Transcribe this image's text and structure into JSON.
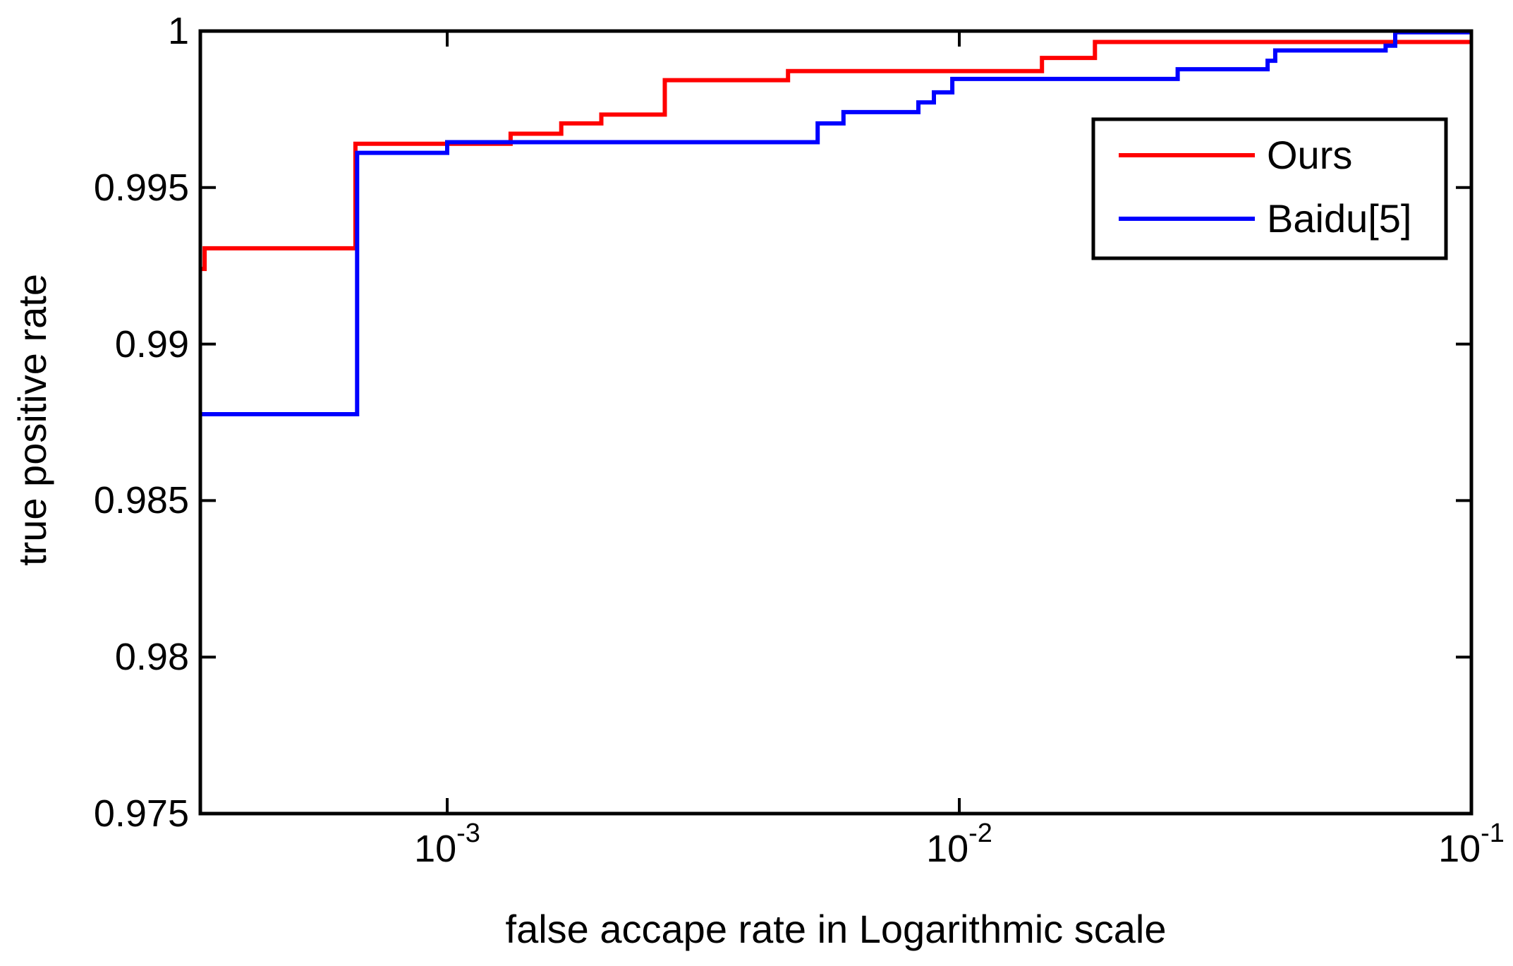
{
  "figure": {
    "background": "#ffffff",
    "frame_color": "#000000"
  },
  "chart_data": {
    "type": "line",
    "subtype": "step-roc-curve",
    "title": "",
    "xlabel": "false accape rate in Logarithmic scale",
    "ylabel": "true positive rate",
    "x_scale": "log10",
    "xlim": [
      0.00033,
      0.1
    ],
    "ylim": [
      0.975,
      1.0
    ],
    "grid": false,
    "x_ticks": [
      {
        "value": 0.001,
        "base": "10",
        "exponent": "-3"
      },
      {
        "value": 0.01,
        "base": "10",
        "exponent": "-2"
      },
      {
        "value": 0.1,
        "base": "10",
        "exponent": "-1"
      }
    ],
    "y_ticks": [
      {
        "value": 1.0,
        "label": "1"
      },
      {
        "value": 0.995,
        "label": "0.995"
      },
      {
        "value": 0.99,
        "label": "0.99"
      },
      {
        "value": 0.985,
        "label": "0.985"
      },
      {
        "value": 0.98,
        "label": "0.98"
      },
      {
        "value": 0.975,
        "label": "0.975"
      }
    ],
    "legend": {
      "position": "upper right",
      "entries": [
        {
          "label": "Ours",
          "color": "#ff0000"
        },
        {
          "label": "Baidu[5]",
          "color": "#0000ff"
        }
      ]
    },
    "series": [
      {
        "name": "Ours",
        "color": "#ff0000",
        "steps": [
          [
            0.00033,
            0.9924
          ],
          [
            0.000336,
            0.99306
          ],
          [
            0.000662,
            0.9964
          ],
          [
            0.00133,
            0.99672
          ],
          [
            0.00167,
            0.99705
          ],
          [
            0.002,
            0.99733
          ],
          [
            0.00266,
            0.99843
          ],
          [
            0.00463,
            0.99872
          ],
          [
            0.0145,
            0.99914
          ],
          [
            0.0184,
            0.99965
          ]
        ],
        "end_x": 0.1
      },
      {
        "name": "Baidu[5]",
        "color": "#0000ff",
        "steps": [
          [
            0.00033,
            0.98776
          ],
          [
            0.000667,
            0.99611
          ],
          [
            0.001,
            0.99645
          ],
          [
            0.00529,
            0.99705
          ],
          [
            0.00594,
            0.99741
          ],
          [
            0.00832,
            0.99772
          ],
          [
            0.00892,
            0.99804
          ],
          [
            0.00969,
            0.99847
          ],
          [
            0.0267,
            0.99878
          ],
          [
            0.04,
            0.99905
          ],
          [
            0.0414,
            0.99938
          ],
          [
            0.068,
            0.99953
          ],
          [
            0.071,
            0.99996
          ]
        ],
        "end_x": 0.1
      }
    ]
  }
}
